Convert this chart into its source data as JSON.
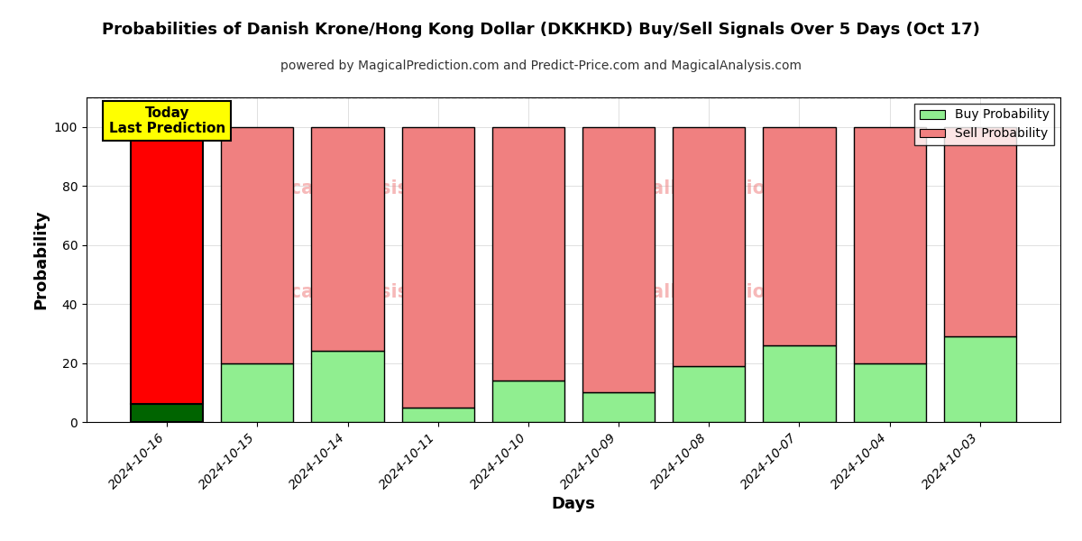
{
  "title": "Probabilities of Danish Krone/Hong Kong Dollar (DKKHKD) Buy/Sell Signals Over 5 Days (Oct 17)",
  "subtitle": "powered by MagicalPrediction.com and Predict-Price.com and MagicalAnalysis.com",
  "xlabel": "Days",
  "ylabel": "Probability",
  "categories": [
    "2024-10-16",
    "2024-10-15",
    "2024-10-14",
    "2024-10-11",
    "2024-10-10",
    "2024-10-09",
    "2024-10-08",
    "2024-10-07",
    "2024-10-04",
    "2024-10-03"
  ],
  "buy_values": [
    6,
    20,
    24,
    5,
    14,
    10,
    19,
    26,
    20,
    29
  ],
  "sell_values": [
    94,
    80,
    76,
    95,
    86,
    90,
    81,
    74,
    80,
    71
  ],
  "today_buy_color": "#006400",
  "today_sell_color": "#ff0000",
  "buy_color": "#90EE90",
  "sell_color": "#F08080",
  "today_label": "Today\nLast Prediction",
  "today_label_bg": "#ffff00",
  "legend_buy_label": "Buy Probability",
  "legend_sell_label": "Sell Probability",
  "ylim": [
    0,
    110
  ],
  "dashed_line_y": 110,
  "bar_edge_color": "#000000",
  "background_color": "#ffffff",
  "watermark_color": "#F08080"
}
